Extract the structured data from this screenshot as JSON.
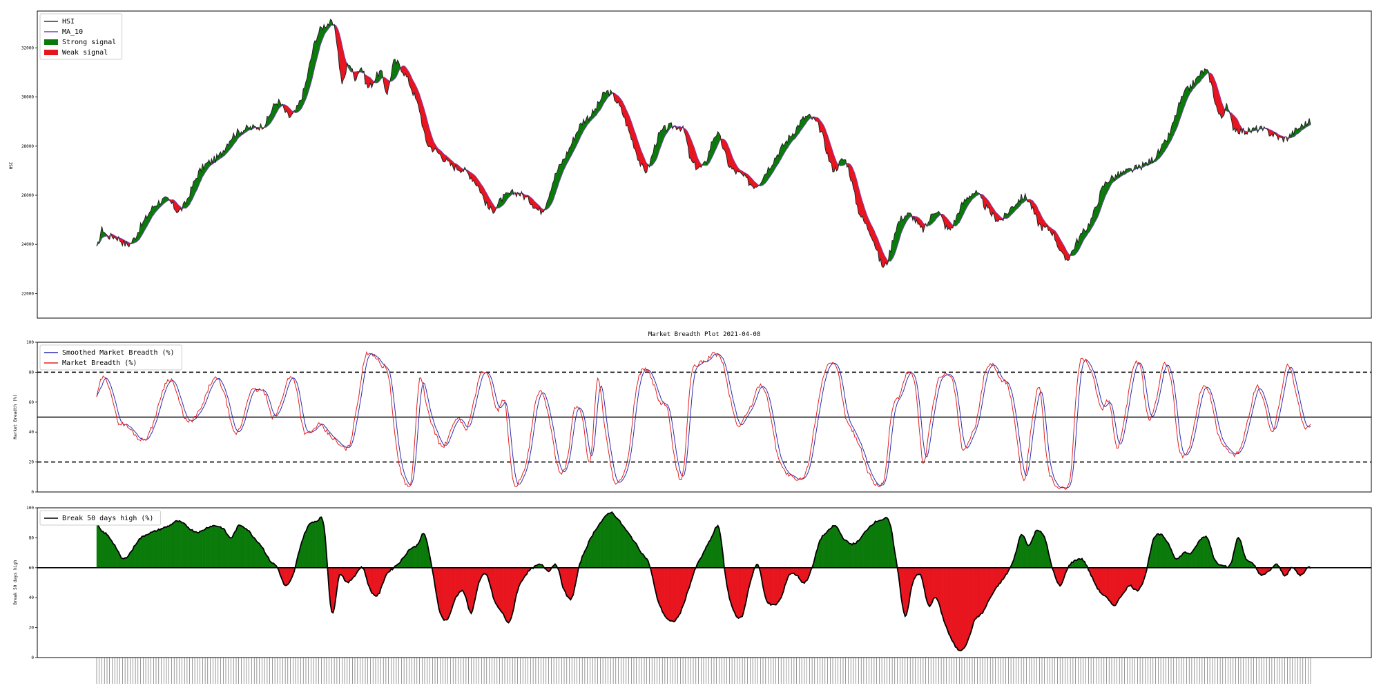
{
  "chart_data": [
    {
      "type": "line",
      "ylabel": "HSI",
      "ylim": [
        21000,
        33500
      ],
      "yticks": [
        22000,
        24000,
        26000,
        28000,
        30000,
        32000
      ],
      "legend": {
        "placement": "top-left",
        "entries": [
          {
            "label": "HSI",
            "kind": "line",
            "color": "#333333"
          },
          {
            "label": "MA_10",
            "kind": "line",
            "color": "#7b3fbf"
          },
          {
            "label": "Strong signal",
            "kind": "patch",
            "color": "#0a7a0a"
          },
          {
            "label": "Weak signal",
            "kind": "patch",
            "color": "#e8141e"
          }
        ]
      },
      "colors": {
        "price": "#222222",
        "ma": "#7b3fbf",
        "strong": "#0a7a0a",
        "weak": "#e8141e"
      },
      "series_keypoints": {
        "name": "HSI",
        "x": [
          0,
          4,
          8,
          15,
          25,
          35,
          45,
          55,
          65,
          80,
          95,
          105,
          115,
          130,
          140,
          150,
          160,
          170,
          180,
          185,
          190,
          195,
          200,
          205,
          210,
          220,
          225,
          230,
          240,
          250,
          255,
          265,
          275,
          285,
          295,
          305,
          315,
          325,
          335,
          345,
          355,
          365,
          375,
          385,
          395,
          405,
          415,
          425,
          435,
          445,
          455,
          460,
          470,
          480,
          490,
          500,
          510,
          520,
          530,
          540,
          550,
          560,
          570,
          580,
          590,
          600,
          610,
          620,
          630,
          640,
          650,
          660,
          670,
          680,
          690,
          700,
          710,
          720,
          730,
          740,
          750,
          760,
          770,
          780,
          790,
          800,
          810,
          820,
          830,
          840,
          850,
          860,
          870,
          875,
          880,
          890,
          900,
          910,
          920,
          930,
          940
        ],
        "y": [
          23800,
          24600,
          24350,
          24300,
          24000,
          24800,
          25600,
          25800,
          25400,
          27000,
          27600,
          28400,
          28700,
          28900,
          29800,
          29200,
          30200,
          32400,
          33000,
          32600,
          30600,
          31400,
          30800,
          31200,
          30400,
          31000,
          30200,
          31400,
          30800,
          29500,
          28200,
          27700,
          27200,
          27000,
          26400,
          25400,
          25900,
          26100,
          25800,
          25400,
          26800,
          27800,
          28900,
          29400,
          30200,
          29600,
          28200,
          27000,
          28400,
          28800,
          28600,
          27400,
          27200,
          28500,
          27200,
          26800,
          26400,
          27100,
          27900,
          28600,
          29200,
          28700,
          27100,
          27400,
          25400,
          24400,
          23100,
          24800,
          25200,
          24600,
          25400,
          24600,
          25600,
          26100,
          25400,
          25000,
          25600,
          25900,
          24800,
          24500,
          23400,
          24200,
          25000,
          26400,
          26800,
          27000,
          27200,
          27600,
          28400,
          29900,
          30600,
          31000,
          29200,
          29600,
          28800,
          28600,
          28700,
          28500,
          28300,
          28700,
          29000
        ]
      }
    },
    {
      "type": "line",
      "title": "Market Breadth Plot 2021-04-08",
      "ylabel": "Market Breadth (%)",
      "ylim": [
        0,
        100
      ],
      "yticks": [
        0,
        20,
        40,
        60,
        80,
        100
      ],
      "hlines": [
        {
          "y": 20,
          "style": "dashed"
        },
        {
          "y": 50,
          "style": "solid"
        },
        {
          "y": 80,
          "style": "dashed"
        }
      ],
      "legend": {
        "placement": "top-left",
        "entries": [
          {
            "label": "Smoothed Market Breadth (%)",
            "kind": "line",
            "color": "#2b2bb0"
          },
          {
            "label": "Market Breadth (%)",
            "kind": "line",
            "color": "#e02020"
          }
        ]
      },
      "series_keypoints": {
        "name": "Market Breadth (%)",
        "x": [
          0,
          4,
          10,
          16,
          22,
          28,
          34,
          40,
          46,
          52,
          58,
          64,
          70,
          76,
          82,
          88,
          94,
          100,
          106,
          112,
          118,
          124,
          130,
          136,
          142,
          148,
          154,
          160,
          166,
          172,
          178,
          184,
          190,
          196,
          202,
          208,
          214,
          220,
          226,
          232,
          238,
          244,
          250,
          256,
          262,
          268,
          274,
          280,
          286,
          292,
          298,
          304,
          310,
          316,
          322,
          328,
          334,
          340,
          346,
          352,
          358,
          364,
          370,
          376,
          382,
          388,
          394,
          400,
          406,
          412,
          418,
          424,
          430,
          436,
          442,
          448,
          454,
          460,
          466,
          472,
          478,
          484,
          490,
          496,
          502,
          508,
          514,
          520,
          526,
          532,
          538,
          544,
          550,
          556,
          562,
          568,
          574,
          580,
          586,
          592,
          598,
          604,
          610,
          616,
          622,
          628,
          634,
          640,
          646,
          652,
          658,
          664,
          670,
          676,
          682,
          688,
          694,
          700,
          706,
          712,
          718,
          724,
          730,
          736,
          742,
          748,
          754,
          760,
          766,
          772,
          778,
          784,
          790,
          796,
          802,
          808,
          814,
          820,
          826,
          832,
          838,
          844,
          850,
          856,
          862,
          868,
          874,
          880,
          886,
          892,
          898,
          904,
          910,
          916,
          922,
          928,
          934,
          940
        ],
        "y": [
          64,
          76,
          70,
          48,
          45,
          40,
          35,
          38,
          52,
          70,
          75,
          60,
          47,
          50,
          58,
          72,
          75,
          62,
          40,
          45,
          65,
          68,
          66,
          50,
          58,
          75,
          72,
          42,
          40,
          45,
          40,
          35,
          30,
          32,
          60,
          90,
          92,
          85,
          78,
          30,
          8,
          10,
          75,
          55,
          40,
          30,
          40,
          50,
          42,
          60,
          80,
          75,
          55,
          60,
          10,
          8,
          25,
          60,
          65,
          40,
          15,
          20,
          55,
          50,
          20,
          75,
          40,
          10,
          8,
          25,
          70,
          82,
          75,
          60,
          55,
          20,
          12,
          75,
          85,
          88,
          92,
          88,
          65,
          45,
          50,
          60,
          72,
          60,
          30,
          15,
          10,
          8,
          15,
          45,
          75,
          85,
          80,
          50,
          40,
          28,
          12,
          5,
          10,
          55,
          65,
          80,
          70,
          20,
          50,
          75,
          78,
          70,
          30,
          35,
          50,
          80,
          85,
          75,
          70,
          40,
          8,
          45,
          70,
          20,
          5,
          3,
          10,
          80,
          88,
          75,
          55,
          60,
          30,
          50,
          80,
          85,
          50,
          60,
          85,
          75,
          30,
          25,
          45,
          70,
          65,
          40,
          30,
          25,
          30,
          50,
          70,
          60,
          40,
          60,
          85,
          70,
          45,
          45
        ]
      }
    },
    {
      "type": "area",
      "ylabel": "Break 50 days high",
      "ylim": [
        0,
        100
      ],
      "yticks": [
        0,
        20,
        40,
        60,
        80,
        100
      ],
      "hlines": [
        {
          "y": 60,
          "style": "solid"
        }
      ],
      "legend": {
        "placement": "top-left",
        "entries": [
          {
            "label": "Break 50 days high (%)",
            "kind": "line",
            "color": "#000000"
          }
        ]
      },
      "colors": {
        "above": "#0a7a0a",
        "below": "#e8141e"
      },
      "series_keypoints": {
        "name": "Break 50 days high (%)",
        "x": [
          0,
          3,
          8,
          14,
          20,
          26,
          32,
          38,
          44,
          50,
          56,
          62,
          68,
          74,
          80,
          86,
          92,
          98,
          104,
          110,
          116,
          122,
          128,
          134,
          140,
          146,
          152,
          158,
          164,
          170,
          176,
          182,
          188,
          194,
          200,
          206,
          212,
          218,
          224,
          230,
          236,
          242,
          248,
          254,
          260,
          266,
          272,
          278,
          284,
          290,
          296,
          302,
          308,
          314,
          320,
          326,
          332,
          338,
          344,
          350,
          356,
          362,
          368,
          374,
          380,
          386,
          392,
          398,
          404,
          410,
          416,
          422,
          428,
          434,
          440,
          446,
          452,
          458,
          464,
          470,
          476,
          482,
          488,
          494,
          500,
          506,
          512,
          518,
          524,
          530,
          536,
          542,
          548,
          554,
          560,
          566,
          572,
          578,
          584,
          590,
          596,
          602,
          608,
          614,
          620,
          626,
          632,
          638,
          644,
          650,
          656,
          662,
          668,
          674,
          680,
          686,
          692,
          698,
          704,
          710,
          716,
          722,
          728,
          734,
          740,
          746,
          752,
          758,
          764,
          770,
          776,
          782,
          788,
          794,
          800,
          806,
          812,
          818,
          824,
          830,
          836,
          842,
          848,
          854,
          860,
          866,
          872,
          878,
          884,
          890,
          896,
          902,
          908,
          914,
          920,
          926,
          932,
          938,
          940
        ],
        "y": [
          90,
          85,
          82,
          75,
          66,
          70,
          78,
          82,
          84,
          86,
          88,
          91,
          89,
          85,
          84,
          87,
          88,
          86,
          80,
          88,
          86,
          80,
          74,
          65,
          60,
          48,
          55,
          75,
          88,
          91,
          88,
          30,
          55,
          50,
          55,
          60,
          45,
          42,
          55,
          60,
          65,
          72,
          75,
          82,
          58,
          30,
          26,
          40,
          44,
          30,
          50,
          55,
          38,
          30,
          24,
          45,
          55,
          60,
          62,
          58,
          62,
          45,
          40,
          62,
          75,
          85,
          92,
          97,
          92,
          85,
          78,
          70,
          62,
          40,
          28,
          24,
          30,
          45,
          60,
          70,
          80,
          86,
          48,
          30,
          28,
          50,
          62,
          40,
          35,
          40,
          55,
          55,
          50,
          60,
          78,
          84,
          88,
          80,
          76,
          78,
          85,
          90,
          92,
          90,
          60,
          28,
          50,
          55,
          35,
          40,
          25,
          12,
          5,
          10,
          25,
          30,
          40,
          48,
          55,
          65,
          82,
          75,
          85,
          80,
          60,
          48,
          60,
          65,
          65,
          55,
          45,
          40,
          35,
          42,
          48,
          45,
          55,
          78,
          82,
          76,
          66,
          70,
          70,
          78,
          80,
          65,
          62,
          62,
          80,
          66,
          62,
          55,
          58,
          62,
          55,
          60,
          55,
          60,
          60
        ]
      }
    }
  ]
}
